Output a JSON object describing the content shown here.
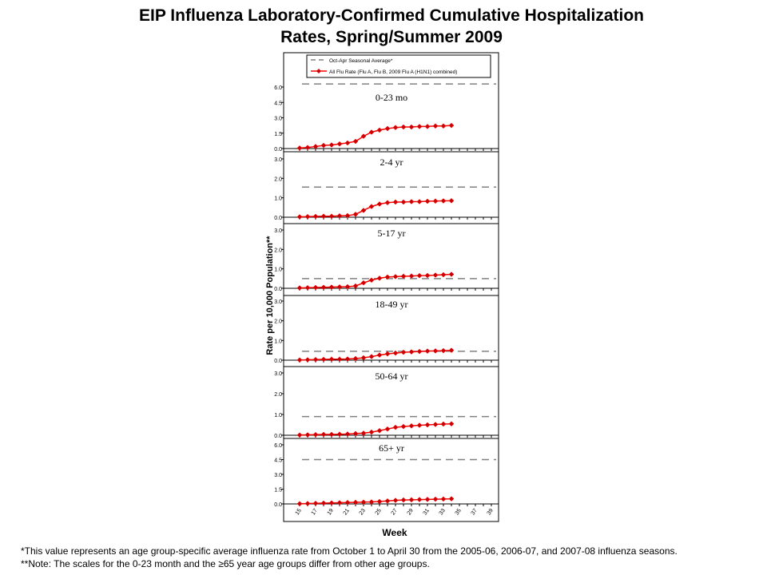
{
  "title": {
    "line1": "EIP Influenza Laboratory-Confirmed Cumulative Hospitalization",
    "line2": "Rates, Spring/Summer 2009"
  },
  "footnotes": [
    "*This value represents an age group-specific average influenza rate from October 1 to April 30 from the 2005-06, 2006-07, and 2007-08 influenza seasons.",
    "**Note: The scales for the 0-23 month and the ≥65 year age groups differ from other age groups."
  ],
  "colors": {
    "series": "#ff0000",
    "marker": "#cc0000",
    "reference": "#808080"
  },
  "chart_data": {
    "type": "line",
    "xlabel": "Week",
    "ylabel": "Rate per 10,000 Population**",
    "x_ticks": [
      "15",
      "17",
      "19",
      "21",
      "23",
      "25",
      "27",
      "29",
      "31",
      "33",
      "35",
      "37",
      "39"
    ],
    "legend": {
      "position": "top",
      "entries": [
        {
          "label": "Oct-Apr Seasonal Average*",
          "style": "dashed"
        },
        {
          "label": "All Flu Rate (Flu A, Flu B, 2009 Flu A (H1N1) combined)",
          "style": "line-marker"
        }
      ]
    },
    "weeks": [
      15,
      16,
      17,
      18,
      19,
      20,
      21,
      22,
      23,
      24,
      25,
      26,
      27,
      28,
      29,
      30,
      31,
      32,
      33,
      34
    ],
    "panels": [
      {
        "label": "0-23 mo",
        "ylim": [
          0,
          6.0
        ],
        "yticks": [
          "0.0",
          "1.5",
          "3.0",
          "4.5",
          "6.0"
        ],
        "reference": 6.3,
        "values": [
          0.05,
          0.1,
          0.2,
          0.3,
          0.35,
          0.45,
          0.55,
          0.7,
          1.2,
          1.6,
          1.8,
          1.95,
          2.05,
          2.1,
          2.1,
          2.15,
          2.15,
          2.2,
          2.2,
          2.25
        ]
      },
      {
        "label": "2-4 yr",
        "ylim": [
          0,
          3.0
        ],
        "yticks": [
          "0.0",
          "1.0",
          "2.0",
          "3.0"
        ],
        "reference": 1.55,
        "values": [
          0.02,
          0.03,
          0.04,
          0.05,
          0.05,
          0.07,
          0.08,
          0.15,
          0.35,
          0.55,
          0.68,
          0.75,
          0.78,
          0.78,
          0.8,
          0.8,
          0.82,
          0.83,
          0.84,
          0.85
        ]
      },
      {
        "label": "5-17 yr",
        "ylim": [
          0,
          3.0
        ],
        "yticks": [
          "0.0",
          "1.0",
          "2.0",
          "3.0"
        ],
        "reference": 0.5,
        "values": [
          0.02,
          0.03,
          0.04,
          0.05,
          0.06,
          0.07,
          0.08,
          0.12,
          0.28,
          0.42,
          0.52,
          0.58,
          0.6,
          0.62,
          0.63,
          0.65,
          0.66,
          0.68,
          0.7,
          0.72
        ]
      },
      {
        "label": "18-49 yr",
        "ylim": [
          0,
          3.0
        ],
        "yticks": [
          "0.0",
          "1.0",
          "2.0",
          "3.0"
        ],
        "reference": 0.45,
        "values": [
          0.01,
          0.02,
          0.03,
          0.04,
          0.05,
          0.05,
          0.06,
          0.08,
          0.12,
          0.18,
          0.26,
          0.32,
          0.36,
          0.4,
          0.42,
          0.44,
          0.46,
          0.47,
          0.48,
          0.5
        ]
      },
      {
        "label": "50-64 yr",
        "ylim": [
          0,
          3.0
        ],
        "yticks": [
          "0.0",
          "1.0",
          "2.0",
          "3.0"
        ],
        "reference": 0.9,
        "values": [
          0.01,
          0.02,
          0.03,
          0.04,
          0.04,
          0.05,
          0.06,
          0.08,
          0.1,
          0.15,
          0.22,
          0.3,
          0.38,
          0.42,
          0.45,
          0.48,
          0.5,
          0.52,
          0.54,
          0.55
        ]
      },
      {
        "label": "65+ yr",
        "ylim": [
          0,
          6.0
        ],
        "yticks": [
          "0.0",
          "1.5",
          "3.0",
          "4.5",
          "6.0"
        ],
        "reference": 4.5,
        "values": [
          0.02,
          0.04,
          0.06,
          0.08,
          0.1,
          0.12,
          0.14,
          0.16,
          0.18,
          0.2,
          0.24,
          0.3,
          0.36,
          0.4,
          0.42,
          0.44,
          0.46,
          0.48,
          0.5,
          0.52
        ]
      }
    ]
  }
}
